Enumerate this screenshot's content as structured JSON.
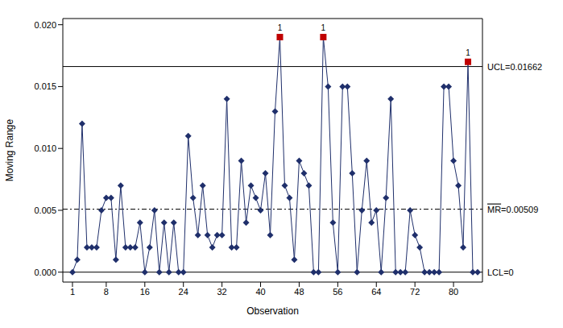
{
  "chart_data": {
    "type": "line",
    "x_label": "Observation",
    "y_label": "Moving Range",
    "x": [
      1,
      2,
      3,
      4,
      5,
      6,
      7,
      8,
      9,
      10,
      11,
      12,
      13,
      14,
      15,
      16,
      17,
      18,
      19,
      20,
      21,
      22,
      23,
      24,
      25,
      26,
      27,
      28,
      29,
      30,
      31,
      32,
      33,
      34,
      35,
      36,
      37,
      38,
      39,
      40,
      41,
      42,
      43,
      44,
      45,
      46,
      47,
      48,
      49,
      50,
      51,
      52,
      53,
      54,
      55,
      56,
      57,
      58,
      59,
      60,
      61,
      62,
      63,
      64,
      65,
      66,
      67,
      68,
      69,
      70,
      71,
      72,
      73,
      74,
      75,
      76,
      77,
      78,
      79,
      80,
      81,
      82,
      83,
      84,
      85
    ],
    "values": [
      0.0,
      0.001,
      0.012,
      0.002,
      0.002,
      0.002,
      0.005,
      0.006,
      0.006,
      0.001,
      0.007,
      0.002,
      0.002,
      0.002,
      0.004,
      0.0,
      0.002,
      0.005,
      0.0,
      0.004,
      0.0,
      0.004,
      0.0,
      0.0,
      0.011,
      0.006,
      0.003,
      0.007,
      0.003,
      0.002,
      0.003,
      0.003,
      0.014,
      0.002,
      0.002,
      0.009,
      0.004,
      0.007,
      0.006,
      0.005,
      0.008,
      0.003,
      0.013,
      0.019,
      0.007,
      0.006,
      0.001,
      0.009,
      0.008,
      0.007,
      0.0,
      0.0,
      0.019,
      0.015,
      0.004,
      0.0,
      0.015,
      0.015,
      0.008,
      0.0,
      0.005,
      0.009,
      0.004,
      0.005,
      0.0,
      0.006,
      0.014,
      0.0,
      0.0,
      0.0,
      0.005,
      0.003,
      0.002,
      0.0,
      0.0,
      0.0,
      0.0,
      0.015,
      0.015,
      0.009,
      0.007,
      0.002,
      0.017,
      0.0,
      0.0
    ],
    "color": "#1f2f6b",
    "marker": "diamond",
    "xlim": [
      -1,
      86
    ],
    "xticks": [
      1,
      8,
      16,
      24,
      32,
      40,
      48,
      56,
      64,
      72,
      80
    ],
    "ylim": [
      -0.0008,
      0.0205
    ],
    "yticks": [
      {
        "value": 0,
        "label": "0.000"
      },
      {
        "value": 0.005,
        "label": "0.005"
      },
      {
        "value": 0.01,
        "label": "0.010"
      },
      {
        "value": 0.015,
        "label": "0.015"
      },
      {
        "value": 0.02,
        "label": "0.020"
      }
    ],
    "reference_lines": [
      {
        "value": 0.01662,
        "label": "UCL=0.01662",
        "line_style": "solid"
      },
      {
        "value": 0.00509,
        "label": "MR=0.00509",
        "line_style": "dashed"
      },
      {
        "value": 0,
        "label": "LCL=0",
        "line_style": "solid"
      }
    ],
    "annotations": [
      {
        "x": 44,
        "y": 0.019,
        "text": "1",
        "color": "#c00000",
        "marker": "square"
      },
      {
        "x": 53,
        "y": 0.019,
        "text": "1",
        "color": "#c00000",
        "marker": "square"
      },
      {
        "x": 83,
        "y": 0.017,
        "text": "1",
        "color": "#c00000",
        "marker": "square"
      }
    ]
  }
}
